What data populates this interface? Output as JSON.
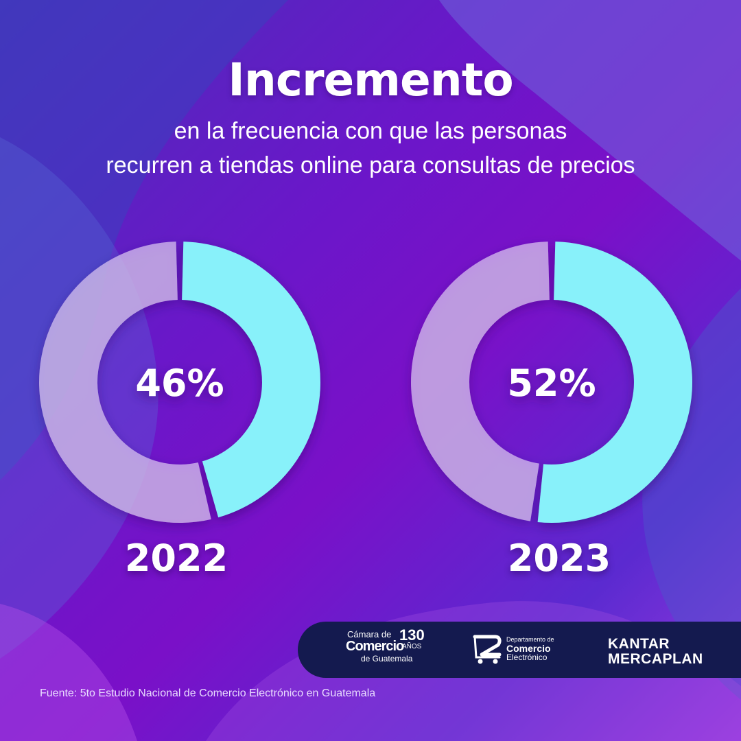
{
  "title": "Incremento",
  "subtitle": {
    "line1": "en la frecuencia con que las personas",
    "line2": "recurren a tiendas online para consultas de precios"
  },
  "chart_data": [
    {
      "type": "pie",
      "variant": "donut",
      "category": "2022",
      "value": 46,
      "label": "46%",
      "remainder": 54
    },
    {
      "type": "pie",
      "variant": "donut",
      "category": "2023",
      "value": 52,
      "label": "52%",
      "remainder": 48
    }
  ],
  "colors": {
    "value": "#88f1fa",
    "remainder": "#d8c4f0",
    "footer": "#141a4f"
  },
  "logos": {
    "camara": {
      "line1": "Cámara de",
      "line2": "Comercio",
      "line3": "de Guatemala",
      "years": "130",
      "years_label": "AÑOS"
    },
    "depto": {
      "line1": "Departamento de",
      "line2": "Comercio",
      "line3": "Electrónico"
    },
    "kantar": {
      "line1": "KANTAR",
      "line2": "MERCAPLAN"
    }
  },
  "source": "Fuente: 5to Estudio Nacional de Comercio Electrónico en Guatemala"
}
